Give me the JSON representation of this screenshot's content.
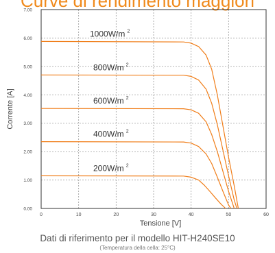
{
  "header": {
    "title_partial": "Curve di rendimento maggiori"
  },
  "caption": {
    "line1": "Dati di riferimento per il modello HIT-H240SE10",
    "line2": "(Temperatura della cella: 25°C)"
  },
  "colors": {
    "curve": "#f07d18",
    "grid": "#9a9a9a",
    "title": "#f08a1c"
  },
  "chart_data": {
    "type": "line",
    "xlabel": "Tensione [V]",
    "ylabel": "Corrente [A]",
    "xlim": [
      0,
      60
    ],
    "ylim": [
      0,
      7
    ],
    "x_ticks": [
      "0",
      "10",
      "20",
      "30",
      "40",
      "50",
      "60"
    ],
    "y_ticks": [
      "0.00",
      "1.00",
      "2.00",
      "3.00",
      "4.00",
      "5.00",
      "6.00",
      "7.00"
    ],
    "grid": true,
    "series": [
      {
        "name": "1000W/m²",
        "label_main": "1000W/m",
        "label_sup": "2",
        "points": [
          [
            0,
            5.88
          ],
          [
            38,
            5.86
          ],
          [
            40,
            5.82
          ],
          [
            42,
            5.7
          ],
          [
            44,
            5.4
          ],
          [
            45.5,
            4.9
          ],
          [
            47,
            4.0
          ],
          [
            48.5,
            2.9
          ],
          [
            50,
            1.8
          ],
          [
            51.5,
            0.8
          ],
          [
            52.6,
            0
          ]
        ]
      },
      {
        "name": "800W/m²",
        "label_main": "800W/m",
        "label_sup": "2",
        "points": [
          [
            0,
            4.7
          ],
          [
            38,
            4.69
          ],
          [
            40,
            4.65
          ],
          [
            42,
            4.52
          ],
          [
            44,
            4.2
          ],
          [
            45.5,
            3.7
          ],
          [
            47,
            2.95
          ],
          [
            48.5,
            2.05
          ],
          [
            50,
            1.15
          ],
          [
            51.5,
            0.3
          ],
          [
            52.2,
            0
          ]
        ]
      },
      {
        "name": "600W/m²",
        "label_main": "600W/m",
        "label_sup": "2",
        "points": [
          [
            0,
            3.52
          ],
          [
            38,
            3.51
          ],
          [
            40,
            3.47
          ],
          [
            42,
            3.35
          ],
          [
            44,
            3.05
          ],
          [
            45.5,
            2.6
          ],
          [
            47,
            2.0
          ],
          [
            48.5,
            1.3
          ],
          [
            50,
            0.6
          ],
          [
            51.5,
            0
          ]
        ]
      },
      {
        "name": "400W/m²",
        "label_main": "400W/m",
        "label_sup": "2",
        "points": [
          [
            0,
            2.35
          ],
          [
            38,
            2.34
          ],
          [
            40,
            2.3
          ],
          [
            42,
            2.18
          ],
          [
            44,
            1.92
          ],
          [
            45.5,
            1.58
          ],
          [
            47,
            1.1
          ],
          [
            48.5,
            0.6
          ],
          [
            50,
            0.12
          ],
          [
            50.6,
            0
          ]
        ]
      },
      {
        "name": "200W/m²",
        "label_main": "200W/m",
        "label_sup": "2",
        "points": [
          [
            0,
            1.15
          ],
          [
            38,
            1.14
          ],
          [
            40,
            1.1
          ],
          [
            42,
            1.0
          ],
          [
            43.5,
            0.82
          ],
          [
            45,
            0.6
          ],
          [
            46.5,
            0.37
          ],
          [
            48,
            0.15
          ],
          [
            49.2,
            0
          ]
        ]
      }
    ]
  }
}
